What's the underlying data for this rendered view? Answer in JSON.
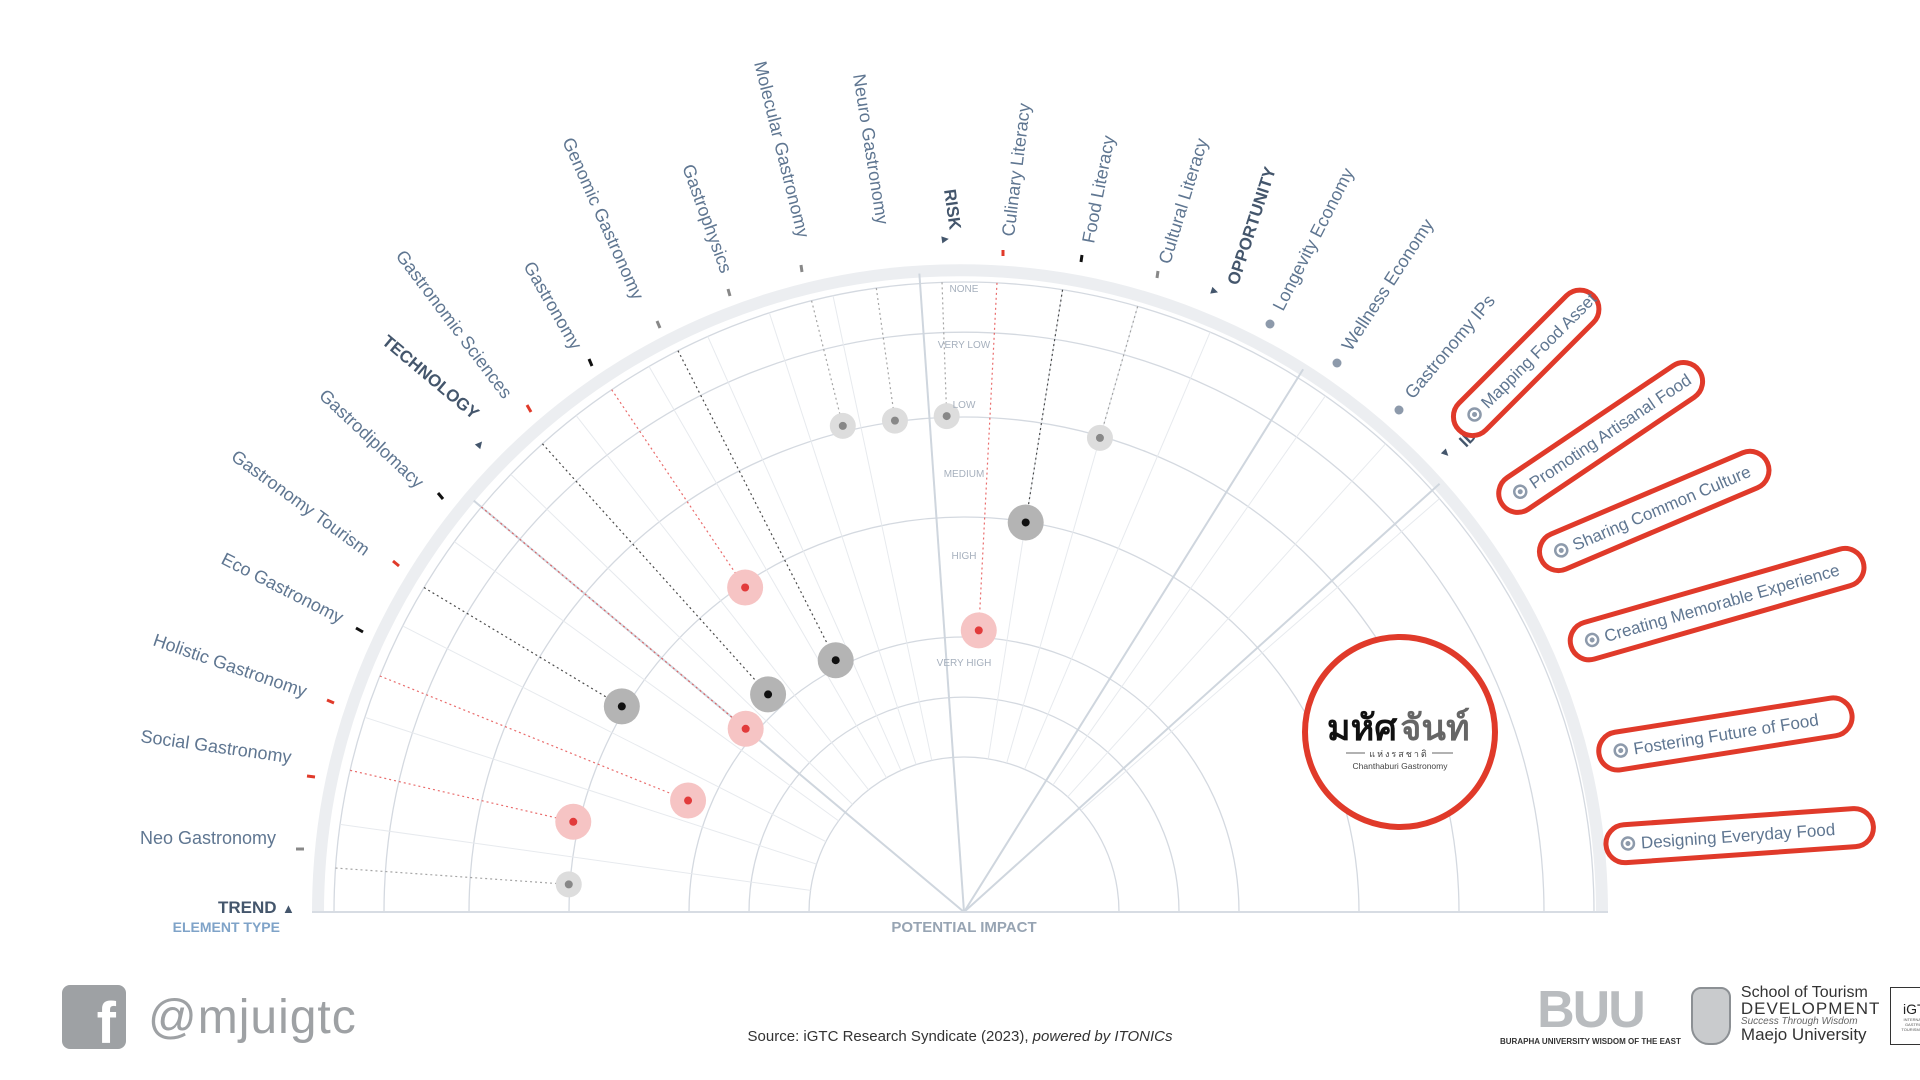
{
  "element_type_label": "ELEMENT TYPE",
  "axis_label": "POTENTIAL IMPACT",
  "rings": [
    "NONE",
    "VERY LOW",
    "LOW",
    "MEDIUM",
    "HIGH",
    "VERY HIGH"
  ],
  "sectors": {
    "trend": "TREND",
    "technology": "TECHNOLOGY",
    "risk": "RISK",
    "opportunity": "OPPORTUNITY",
    "idea": "IDEA"
  },
  "labels": {
    "neo": "Neo Gastronomy",
    "social": "Social Gastronomy",
    "holistic": "Holistic Gastronomy",
    "eco": "Eco Gastronomy",
    "tourism": "Gastronomy Tourism",
    "diplomacy": "Gastrodiplomacy",
    "sciences": "Gastronomic Sciences",
    "gastronomy": "Gastronomy",
    "genomic": "Genomic Gastronomy",
    "physics": "Gastrophysics",
    "molecular": "Molecular Gastronomy",
    "neuro": "Neuro Gastronomy",
    "culinary": "Culinary Literacy",
    "food": "Food Literacy",
    "cultural": "Cultural Literacy",
    "longevity": "Longevity Economy",
    "wellness": "Wellness Economy",
    "ips": "Gastronomy IPs"
  },
  "ideas": [
    "Mapping Food Asset",
    "Promoting Artisanal Food",
    "Sharing Common Culture",
    "Creating Memorable Experience",
    "Fostering Future of Food",
    "Designing Everyday Food"
  ],
  "center_logo": {
    "thai_a": "มหัศ",
    "thai_b": "จันท์",
    "thai_sub": "แห่งรสชาติ",
    "english": "Chanthaburi Gastronomy"
  },
  "colors": {
    "label": "#5f7691",
    "heading": "#44566c",
    "accent_red": "#e03a2a",
    "element_type": "#7fa3c8",
    "dot_red": "#e23b3b",
    "dot_black": "#111111",
    "dot_gray": "#888888",
    "halo_red": "#f6c4c4",
    "halo_black": "#b4b4b4",
    "halo_gray": "#dddddd",
    "outer_band": "#eceef1",
    "ring": "#d4d9e0"
  },
  "footer": {
    "facebook_icon": "facebook-icon",
    "facebook_letter": "f",
    "handle": "@mjuigtc",
    "source_prefix": "Source: iGTC Research Syndicate (2023), ",
    "source_suffix": "powered by ITONICs",
    "buu_letters": "BUU",
    "buu_a": "BURAPHA",
    "buu_b": " UNIVERSITY",
    "buu_c": " WISDOM OF THE EAST",
    "school_line1": "School of Tourism",
    "school_line2": "DEVELOPMENT",
    "school_line3": "Success Through Wisdom",
    "school_line4": "Maejo University",
    "igtc": "iGTC",
    "igtc_sub": "INTERNATIONAL GASTRONOMY TOURISM CENTER"
  },
  "elements": [
    {
      "key": "neo",
      "type": "trend",
      "impact": "medium",
      "color": "gray",
      "ring": 0.52
    },
    {
      "key": "social",
      "type": "trend",
      "impact": "medium",
      "color": "red",
      "ring": 0.6
    },
    {
      "key": "holistic",
      "type": "trend",
      "impact": "high",
      "color": "red",
      "ring": 0.46
    },
    {
      "key": "eco",
      "type": "trend",
      "impact": "medium",
      "color": "black",
      "ring": 0.57
    },
    {
      "key": "tourism",
      "type": "trend",
      "impact": "high",
      "color": "red",
      "ring": 0.25
    },
    {
      "key": "diplomacy",
      "type": "technology",
      "impact": "high",
      "color": "black",
      "ring": 0.38
    },
    {
      "key": "sciences",
      "type": "technology",
      "impact": "medium",
      "color": "red",
      "ring": 0.44
    },
    {
      "key": "gastronomy",
      "type": "technology",
      "impact": "high",
      "color": "black",
      "ring": 0.21
    },
    {
      "key": "physics",
      "type": "technology",
      "impact": "low",
      "color": "gray",
      "ring": 0.6
    },
    {
      "key": "molecular",
      "type": "technology",
      "impact": "low",
      "color": "gray",
      "ring": 0.52
    },
    {
      "key": "neuro",
      "type": "technology",
      "impact": "low",
      "color": "gray",
      "ring": 0.52
    },
    {
      "key": "culinary",
      "type": "risk",
      "impact": "high",
      "color": "red",
      "ring": 0.2
    },
    {
      "key": "food",
      "type": "risk",
      "impact": "medium",
      "color": "black",
      "ring": 0.49
    },
    {
      "key": "cultural",
      "type": "risk",
      "impact": "low",
      "color": "gray",
      "ring": 0.47
    }
  ]
}
